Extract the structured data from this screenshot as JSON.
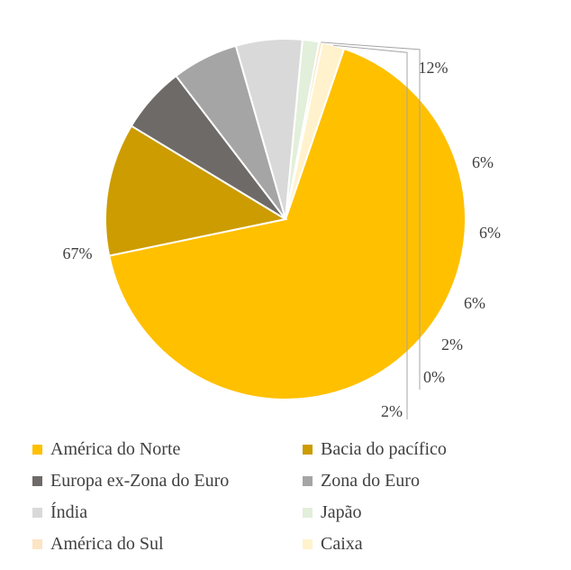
{
  "chart_data": {
    "type": "pie",
    "title": "",
    "slices": [
      {
        "name": "América do Norte",
        "value": 67,
        "label": "67%",
        "color": "#FFC000"
      },
      {
        "name": "Bacia do pacífico",
        "value": 12,
        "label": "12%",
        "color": "#CC9C00"
      },
      {
        "name": "Europa ex-Zona do Euro",
        "value": 6,
        "label": "6%",
        "color": "#6E6A68"
      },
      {
        "name": "Zona do Euro",
        "value": 6,
        "label": "6%",
        "color": "#A5A5A5"
      },
      {
        "name": "Índia",
        "value": 6,
        "label": "6%",
        "color": "#D9D9D9"
      },
      {
        "name": "Japão",
        "value": 1.5,
        "label": "2%",
        "color": "#E2EFDA"
      },
      {
        "name": "América do Sul",
        "value": 0.3,
        "label": "0%",
        "color": "#FCE4C4"
      },
      {
        "name": "Caixa",
        "value": 2,
        "label": "2%",
        "color": "#FFF2CC"
      }
    ],
    "legend_position": "bottom"
  }
}
